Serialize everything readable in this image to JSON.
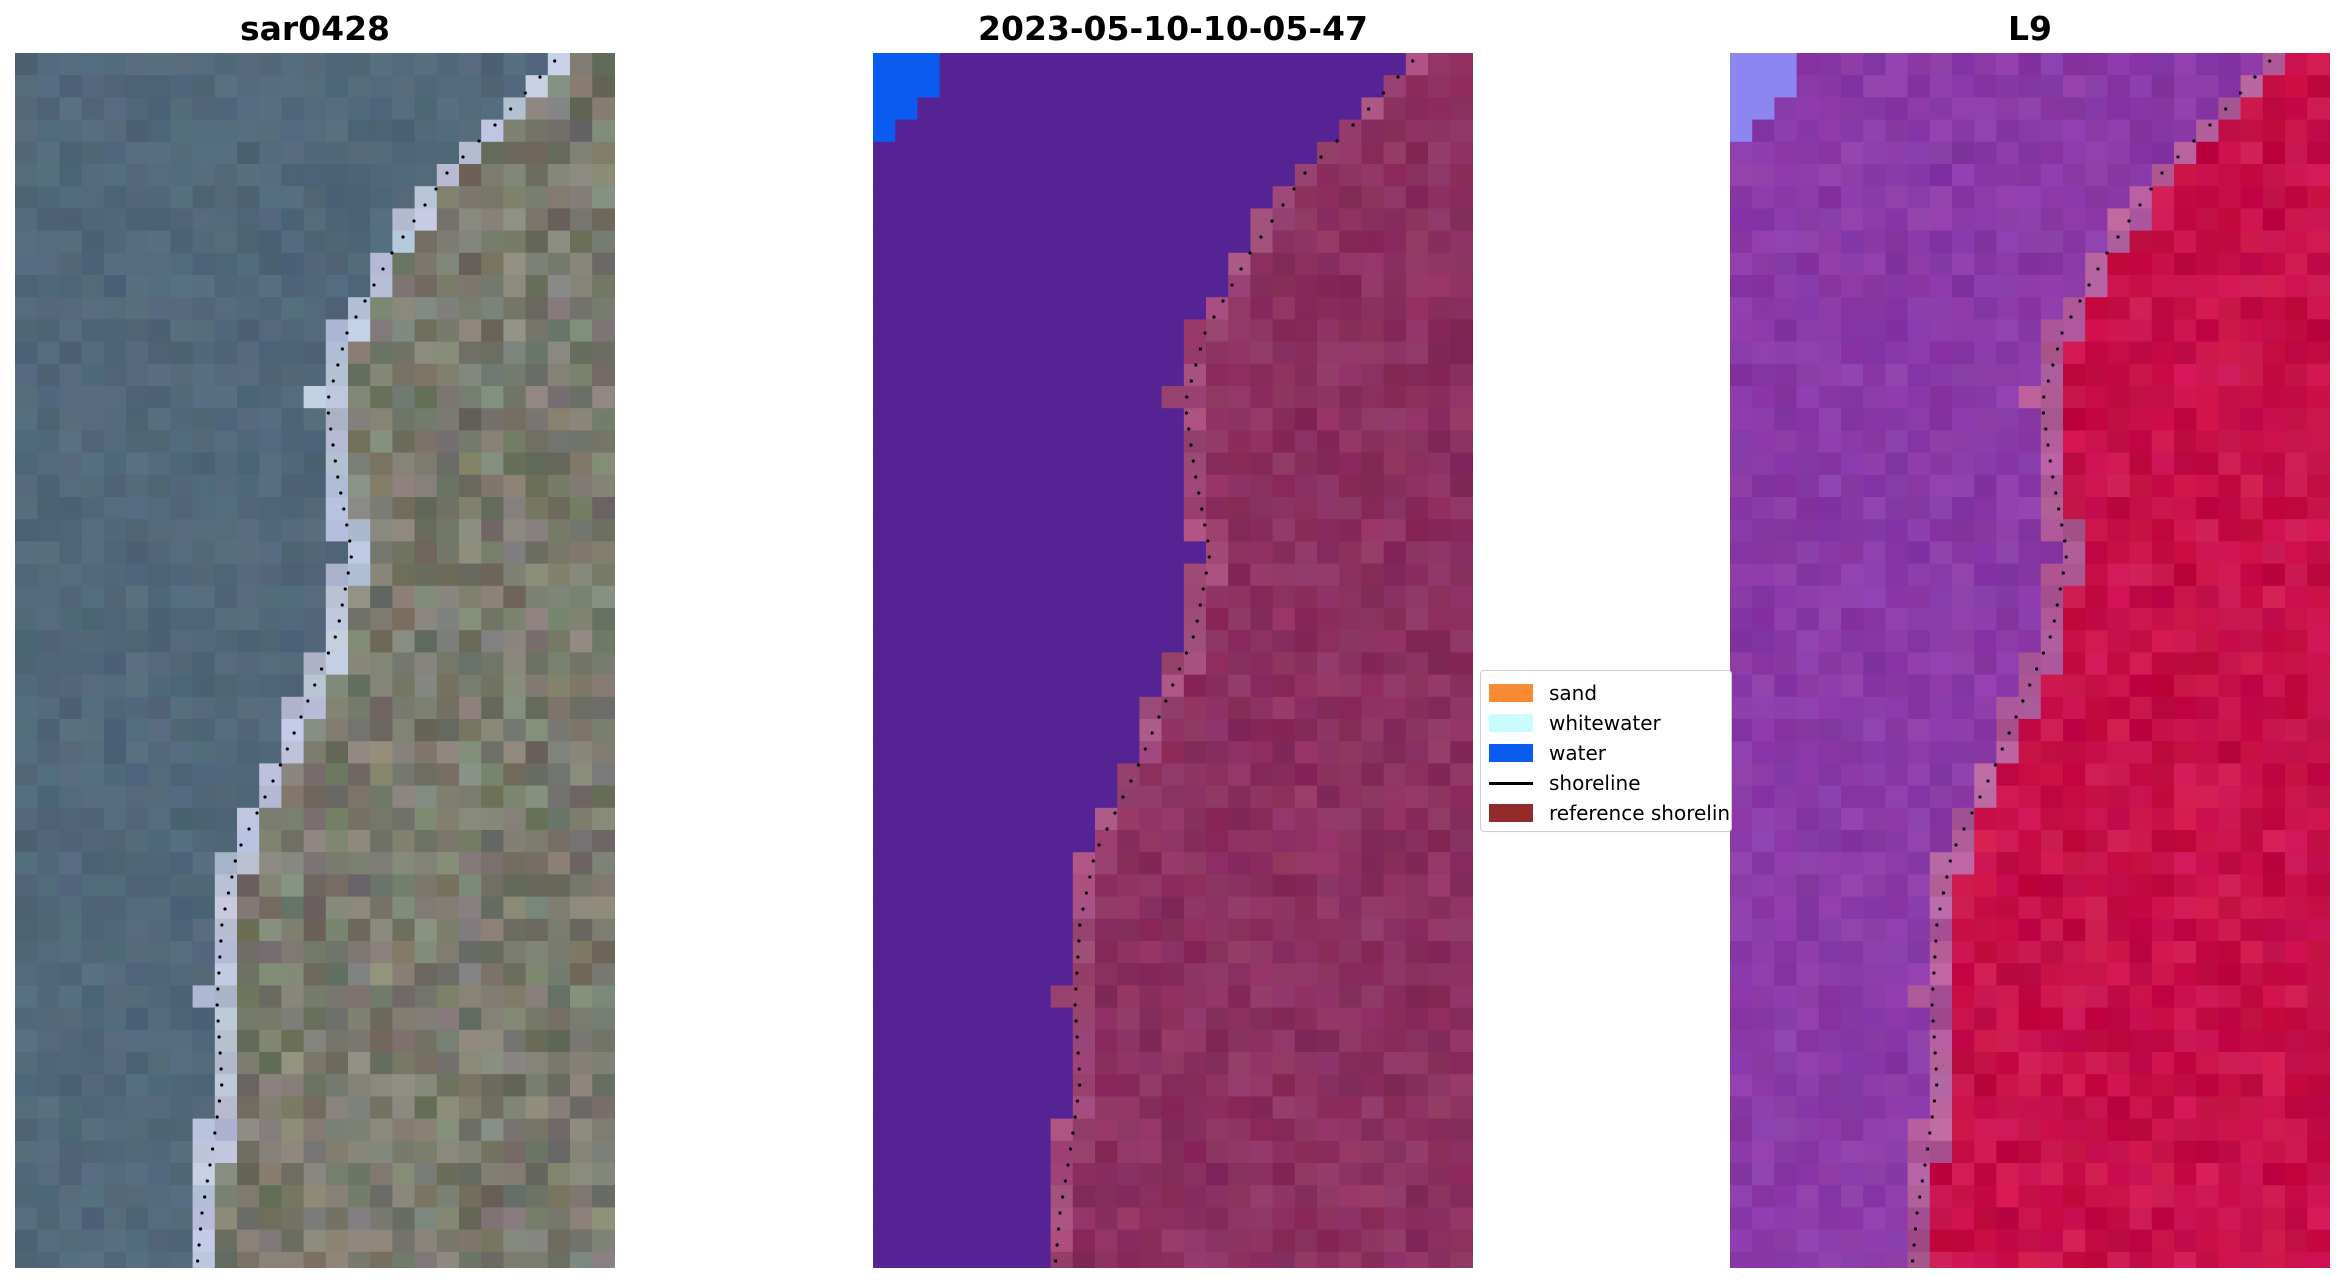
{
  "panels": [
    {
      "title": "sar0428",
      "kind": "rgb"
    },
    {
      "title": "2023-05-10-10-05-47",
      "kind": "classified"
    },
    {
      "title": "L9",
      "kind": "index"
    }
  ],
  "legend": {
    "items": [
      {
        "label": "sand",
        "type": "patch",
        "color": "#f78a32"
      },
      {
        "label": "whitewater",
        "type": "patch",
        "color": "#c8fbfb"
      },
      {
        "label": "water",
        "type": "patch",
        "color": "#0a5cf0"
      },
      {
        "label": "shoreline",
        "type": "line",
        "color": "#000000"
      },
      {
        "label": "reference shoreline",
        "type": "patch",
        "color": "#922b2b"
      }
    ]
  },
  "colors": {
    "rgb_water": "#51687a",
    "rgb_land": "#7a7a6e",
    "class_water": "#552394",
    "class_land": "#8c3060",
    "class_blue": "#0a5cf0",
    "index_water": "#8a3aa8",
    "index_land": "#c8104a",
    "index_light": "#8d86f0"
  }
}
